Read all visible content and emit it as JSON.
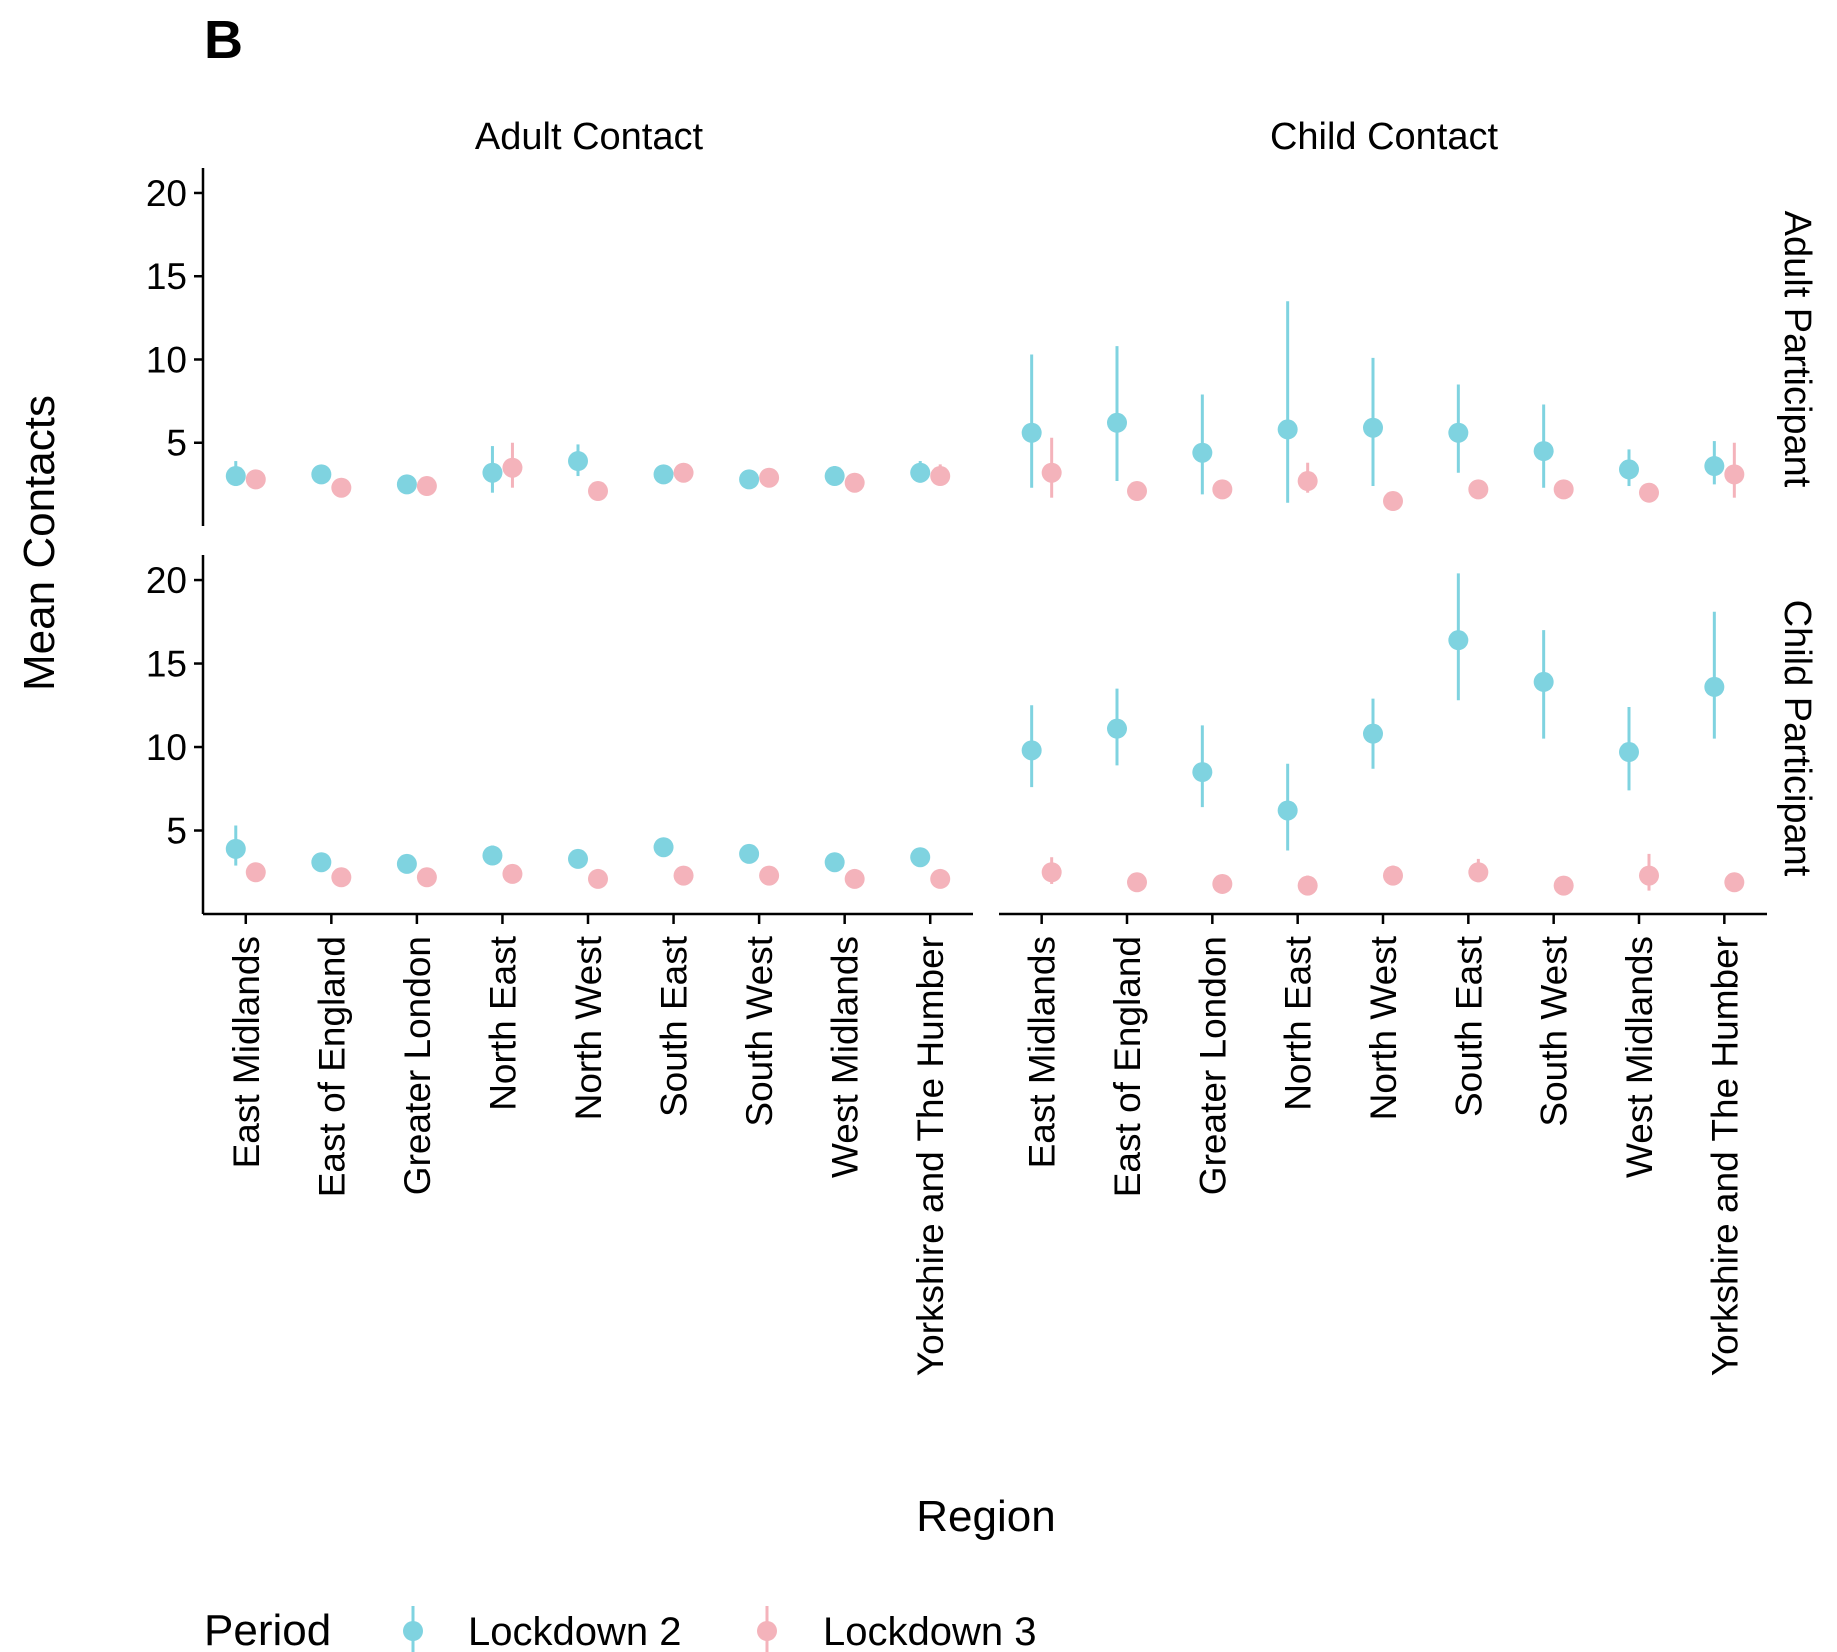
{
  "chart_data": {
    "type": "scatter",
    "tag": "B",
    "ylabel": "Mean Contacts",
    "xlabel": "Region",
    "ylim": [
      0,
      21.5
    ],
    "yticks": [
      5,
      10,
      15,
      20
    ],
    "categories": [
      "East Midlands",
      "East of England",
      "Greater London",
      "North East",
      "North West",
      "South East",
      "South West",
      "West Midlands",
      "Yorkshire and The Humber"
    ],
    "columns": [
      "Adult Contact",
      "Child Contact"
    ],
    "rows": [
      "Adult Participant",
      "Child Participant"
    ],
    "legend": {
      "title": "Period",
      "position": "bottom",
      "items": [
        {
          "label": "Lockdown 2",
          "color": "#7fd3e0"
        },
        {
          "label": "Lockdown 3",
          "color": "#f4b3bb"
        }
      ]
    },
    "panels": [
      {
        "row": "Adult Participant",
        "column": "Adult Contact",
        "series": [
          {
            "name": "Lockdown 2",
            "mean": [
              3.0,
              3.1,
              2.5,
              3.2,
              3.9,
              3.1,
              2.8,
              3.0,
              3.2
            ],
            "lower": [
              2.4,
              2.8,
              2.2,
              2.0,
              3.0,
              2.8,
              2.6,
              2.6,
              2.6
            ],
            "upper": [
              3.9,
              3.4,
              2.8,
              4.8,
              4.9,
              3.4,
              3.0,
              3.6,
              3.9
            ]
          },
          {
            "name": "Lockdown 3",
            "mean": [
              2.8,
              2.3,
              2.4,
              3.5,
              2.1,
              3.2,
              2.9,
              2.6,
              3.0
            ],
            "lower": [
              2.5,
              2.1,
              2.2,
              2.3,
              1.9,
              2.9,
              2.7,
              2.4,
              2.5
            ],
            "upper": [
              3.3,
              2.5,
              2.7,
              5.0,
              2.3,
              3.5,
              3.1,
              2.8,
              3.7
            ]
          }
        ]
      },
      {
        "row": "Adult Participant",
        "column": "Child Contact",
        "series": [
          {
            "name": "Lockdown 2",
            "mean": [
              5.6,
              6.2,
              4.4,
              5.8,
              5.9,
              5.6,
              4.5,
              3.4,
              3.6
            ],
            "lower": [
              2.3,
              2.7,
              1.9,
              1.4,
              2.4,
              3.2,
              2.3,
              2.4,
              2.5
            ],
            "upper": [
              10.3,
              10.8,
              7.9,
              13.5,
              10.1,
              8.5,
              7.3,
              4.6,
              5.1
            ]
          },
          {
            "name": "Lockdown 3",
            "mean": [
              3.2,
              2.1,
              2.2,
              2.7,
              1.5,
              2.2,
              2.2,
              2.0,
              3.1
            ],
            "lower": [
              1.7,
              1.9,
              2.0,
              2.0,
              1.3,
              2.0,
              2.0,
              1.8,
              1.7
            ],
            "upper": [
              5.3,
              2.3,
              2.4,
              3.8,
              1.7,
              2.4,
              2.4,
              2.2,
              5.0
            ]
          }
        ]
      },
      {
        "row": "Child Participant",
        "column": "Adult Contact",
        "series": [
          {
            "name": "Lockdown 2",
            "mean": [
              3.9,
              3.1,
              3.0,
              3.5,
              3.3,
              4.0,
              3.6,
              3.1,
              3.4
            ],
            "lower": [
              2.9,
              2.8,
              2.7,
              3.0,
              3.0,
              3.7,
              3.2,
              2.8,
              3.0
            ],
            "upper": [
              5.3,
              3.4,
              3.3,
              4.1,
              3.6,
              4.3,
              4.0,
              3.4,
              3.8
            ]
          },
          {
            "name": "Lockdown 3",
            "mean": [
              2.5,
              2.2,
              2.2,
              2.4,
              2.1,
              2.3,
              2.3,
              2.1,
              2.1
            ],
            "lower": [
              2.3,
              2.0,
              2.0,
              2.2,
              1.9,
              2.1,
              2.1,
              1.9,
              1.9
            ],
            "upper": [
              2.7,
              2.4,
              2.4,
              2.6,
              2.3,
              2.5,
              2.5,
              2.3,
              2.3
            ]
          }
        ]
      },
      {
        "row": "Child Participant",
        "column": "Child Contact",
        "series": [
          {
            "name": "Lockdown 2",
            "mean": [
              9.8,
              11.1,
              8.5,
              6.2,
              10.8,
              16.4,
              13.9,
              9.7,
              13.6
            ],
            "lower": [
              7.6,
              8.9,
              6.4,
              3.8,
              8.7,
              12.8,
              10.5,
              7.4,
              10.5
            ],
            "upper": [
              12.5,
              13.5,
              11.3,
              9.0,
              12.9,
              20.4,
              17.0,
              12.4,
              18.1
            ]
          },
          {
            "name": "Lockdown 3",
            "mean": [
              2.5,
              1.9,
              1.8,
              1.7,
              2.3,
              2.5,
              1.7,
              2.3,
              1.9
            ],
            "lower": [
              1.8,
              1.7,
              1.6,
              1.2,
              1.9,
              1.9,
              1.5,
              1.4,
              1.7
            ],
            "upper": [
              3.4,
              2.1,
              2.0,
              2.3,
              2.9,
              3.3,
              1.9,
              3.6,
              2.1
            ]
          }
        ]
      }
    ]
  }
}
